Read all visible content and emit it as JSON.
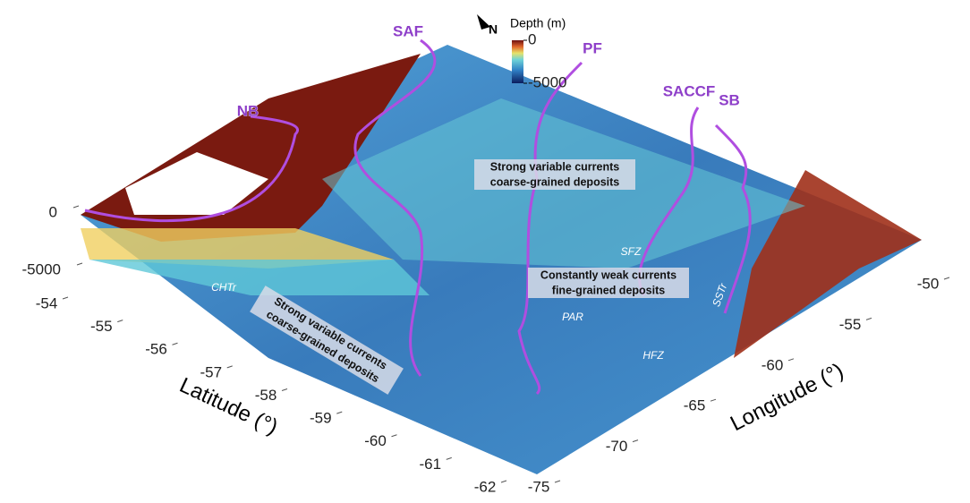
{
  "chart_data": {
    "type": "surface",
    "xlabel": "Longitude (°)",
    "ylabel": "Latitude (°)",
    "xlim": [
      -75,
      -50
    ],
    "xticks": [
      -75,
      -70,
      -65,
      -60,
      -55,
      -50
    ],
    "ylim": [
      -54,
      -62
    ],
    "yticks": [
      -54,
      -55,
      -56,
      -57,
      -58,
      -59,
      -60,
      -61,
      -62
    ],
    "zlim": [
      -5000,
      0
    ],
    "zticks": [
      0,
      -5000
    ],
    "colorbar": {
      "label": "Depth (m)",
      "lim": [
        -5000,
        0
      ],
      "ticks": [
        0,
        -5000
      ]
    },
    "north_label": "N",
    "fronts": [
      "NB",
      "SAF",
      "PF",
      "SACCF",
      "SB"
    ],
    "boxes": [
      [
        "Strong variable currents",
        "coarse-grained deposits"
      ],
      [
        "Constantly weak currents",
        "fine-grained deposits"
      ],
      [
        "Strong variable currents",
        "coarse-grained deposits"
      ]
    ],
    "features": [
      "CHTr",
      "SFZ",
      "PAR",
      "HFZ",
      "SSTr"
    ]
  }
}
